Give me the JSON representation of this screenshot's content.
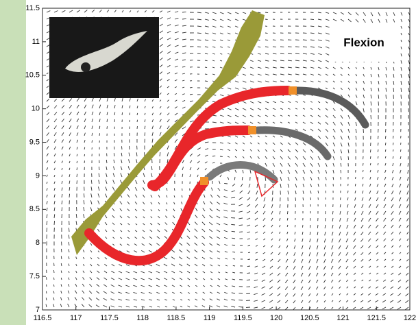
{
  "chart_data": {
    "type": "map",
    "annotation": "Flexion",
    "xlim": [
      116.5,
      122
    ],
    "xticks": [
      116.5,
      117,
      117.5,
      118,
      118.5,
      119,
      119.5,
      120,
      120.5,
      121,
      121.5,
      122
    ],
    "ylim": [
      7,
      11.5
    ],
    "yticks": [
      11.5,
      11,
      10.5,
      10,
      9.5,
      9,
      8.5,
      8,
      7.5,
      7
    ]
  }
}
